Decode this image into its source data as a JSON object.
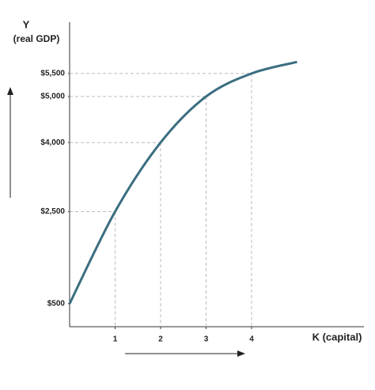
{
  "chart_data": {
    "type": "line",
    "ylabel": "Y",
    "ylabel_sub": "(real GDP)",
    "xlabel": "K (capital)",
    "x": [
      0,
      1,
      2,
      3,
      4,
      5
    ],
    "series": [
      {
        "color": "#3b6e80",
        "values": [
          500,
          2500,
          4000,
          5000,
          5500,
          5750
        ]
      }
    ],
    "xlim": [
      0,
      6.47
    ],
    "ylim": [
      0,
      6615
    ],
    "xticks": [
      1,
      2,
      3,
      4
    ],
    "yticks": [
      {
        "value": 500,
        "label": "$500"
      },
      {
        "value": 2500,
        "label": "$2,500"
      },
      {
        "value": 4000,
        "label": "$4,000"
      },
      {
        "value": 5000,
        "label": "$5,000"
      },
      {
        "value": 5500,
        "label": "$5,500"
      }
    ]
  }
}
